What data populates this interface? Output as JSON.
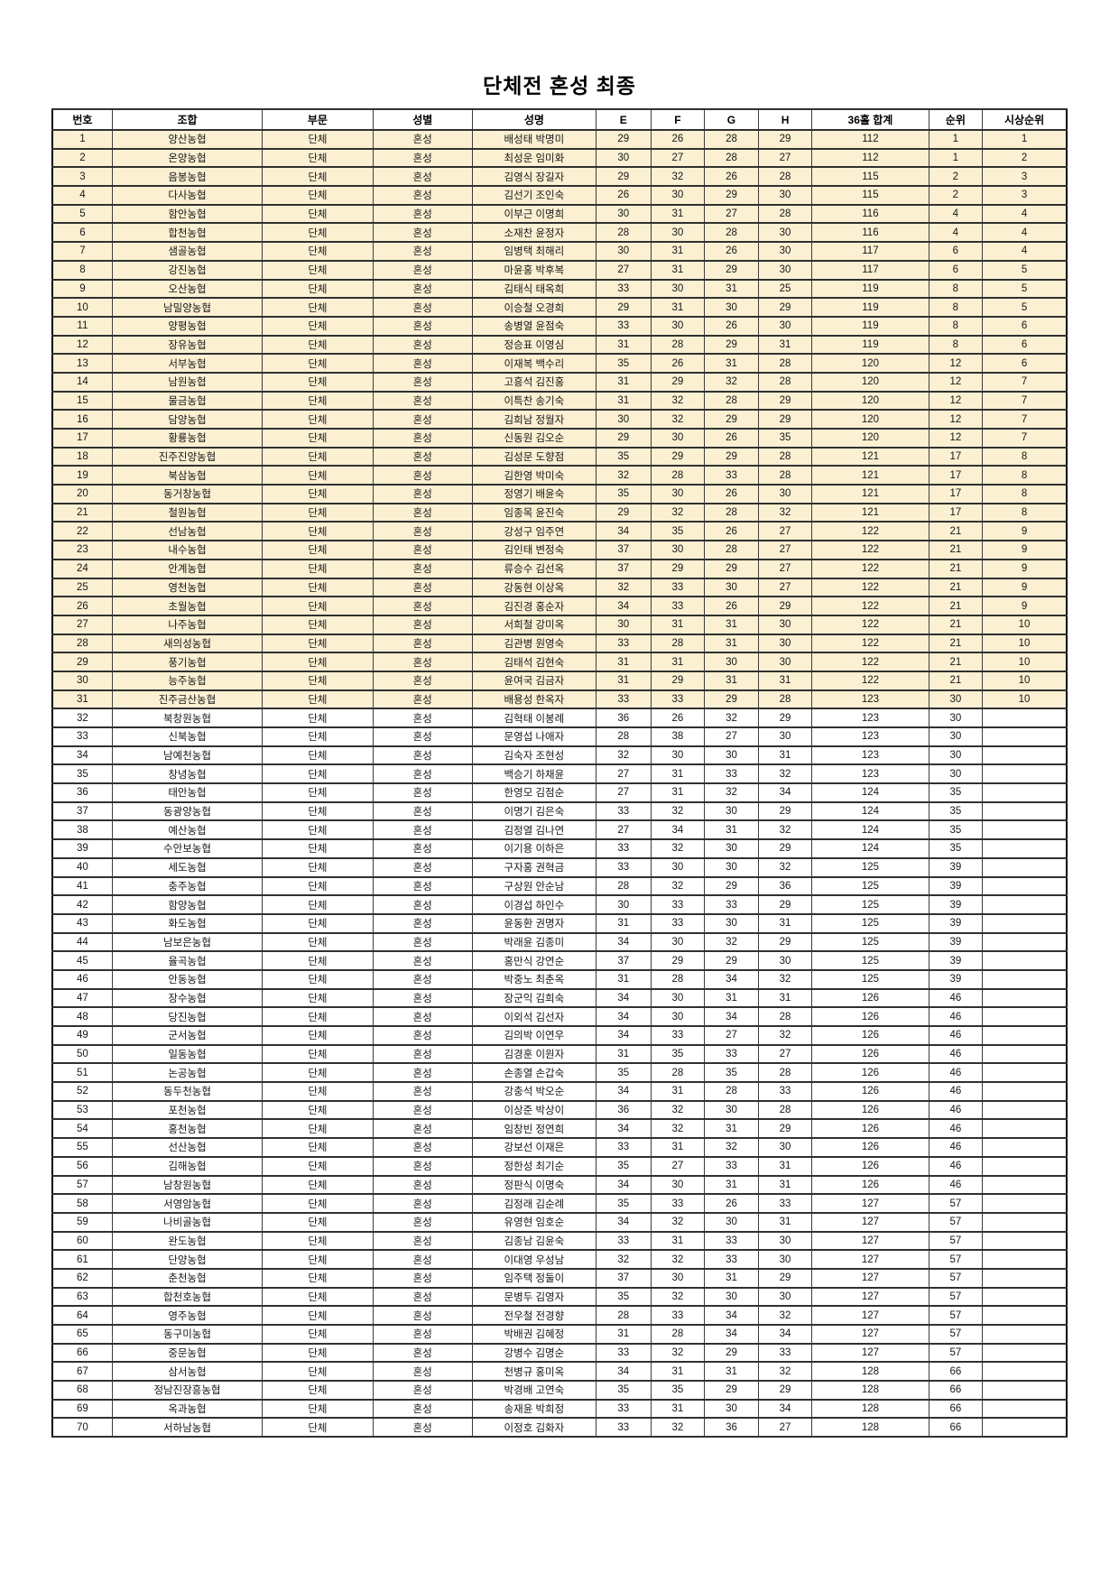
{
  "page": {
    "title": "단체전 혼성 최종"
  },
  "table": {
    "columns": [
      "번호",
      "조합",
      "부문",
      "성별",
      "성명",
      "E",
      "F",
      "G",
      "H",
      "36홀 합계",
      "순위",
      "시상순위"
    ],
    "highlight_color": "#fbf0d2",
    "highlight_through_row": 31,
    "rows": [
      [
        "1",
        "양산농협",
        "단체",
        "혼성",
        "배성태 박명미",
        "29",
        "26",
        "28",
        "29",
        "112",
        "1",
        "1"
      ],
      [
        "2",
        "온양농협",
        "단체",
        "혼성",
        "최성운 임미화",
        "30",
        "27",
        "28",
        "27",
        "112",
        "1",
        "2"
      ],
      [
        "3",
        "음봉농협",
        "단체",
        "혼성",
        "김영식 장길자",
        "29",
        "32",
        "26",
        "28",
        "115",
        "2",
        "3"
      ],
      [
        "4",
        "다사농협",
        "단체",
        "혼성",
        "김선기 조인숙",
        "26",
        "30",
        "29",
        "30",
        "115",
        "2",
        "3"
      ],
      [
        "5",
        "함안농협",
        "단체",
        "혼성",
        "이부근 이명희",
        "30",
        "31",
        "27",
        "28",
        "116",
        "4",
        "4"
      ],
      [
        "6",
        "합천농협",
        "단체",
        "혼성",
        "소재찬 윤정자",
        "28",
        "30",
        "28",
        "30",
        "116",
        "4",
        "4"
      ],
      [
        "7",
        "샘골농협",
        "단체",
        "혼성",
        "임병택 최해리",
        "30",
        "31",
        "26",
        "30",
        "117",
        "6",
        "4"
      ],
      [
        "8",
        "강진농협",
        "단체",
        "혼성",
        "마윤홍 박후복",
        "27",
        "31",
        "29",
        "30",
        "117",
        "6",
        "5"
      ],
      [
        "9",
        "오산농협",
        "단체",
        "혼성",
        "김태식 태옥희",
        "33",
        "30",
        "31",
        "25",
        "119",
        "8",
        "5"
      ],
      [
        "10",
        "남밀양농협",
        "단체",
        "혼성",
        "이승철 오경희",
        "29",
        "31",
        "30",
        "29",
        "119",
        "8",
        "5"
      ],
      [
        "11",
        "양평농협",
        "단체",
        "혼성",
        "송병열 윤점숙",
        "33",
        "30",
        "26",
        "30",
        "119",
        "8",
        "6"
      ],
      [
        "12",
        "장유농협",
        "단체",
        "혼성",
        "정승표 이영심",
        "31",
        "28",
        "29",
        "31",
        "119",
        "8",
        "6"
      ],
      [
        "13",
        "서부농협",
        "단체",
        "혼성",
        "이재복 백수리",
        "35",
        "26",
        "31",
        "28",
        "120",
        "12",
        "6"
      ],
      [
        "14",
        "남원농협",
        "단체",
        "혼성",
        "고흥석 김진홍",
        "31",
        "29",
        "32",
        "28",
        "120",
        "12",
        "7"
      ],
      [
        "15",
        "물금농협",
        "단체",
        "혼성",
        "이특찬 송기숙",
        "31",
        "32",
        "28",
        "29",
        "120",
        "12",
        "7"
      ],
      [
        "16",
        "담양농협",
        "단체",
        "혼성",
        "김희남 정월자",
        "30",
        "32",
        "29",
        "29",
        "120",
        "12",
        "7"
      ],
      [
        "17",
        "황룡농협",
        "단체",
        "혼성",
        "신동원 김오순",
        "29",
        "30",
        "26",
        "35",
        "120",
        "12",
        "7"
      ],
      [
        "18",
        "진주진양농협",
        "단체",
        "혼성",
        "김성문 도향점",
        "35",
        "29",
        "29",
        "28",
        "121",
        "17",
        "8"
      ],
      [
        "19",
        "북삼농협",
        "단체",
        "혼성",
        "김한영 박미숙",
        "32",
        "28",
        "33",
        "28",
        "121",
        "17",
        "8"
      ],
      [
        "20",
        "동거창농협",
        "단체",
        "혼성",
        "정영기 배윤숙",
        "35",
        "30",
        "26",
        "30",
        "121",
        "17",
        "8"
      ],
      [
        "21",
        "철원농협",
        "단체",
        "혼성",
        "임종목 윤진숙",
        "29",
        "32",
        "28",
        "32",
        "121",
        "17",
        "8"
      ],
      [
        "22",
        "선남농협",
        "단체",
        "혼성",
        "강성구 임주연",
        "34",
        "35",
        "26",
        "27",
        "122",
        "21",
        "9"
      ],
      [
        "23",
        "내수농협",
        "단체",
        "혼성",
        "김인태 변정숙",
        "37",
        "30",
        "28",
        "27",
        "122",
        "21",
        "9"
      ],
      [
        "24",
        "안계농협",
        "단체",
        "혼성",
        "류승수 김선옥",
        "37",
        "29",
        "29",
        "27",
        "122",
        "21",
        "9"
      ],
      [
        "25",
        "영천농협",
        "단체",
        "혼성",
        "강동현 이상옥",
        "32",
        "33",
        "30",
        "27",
        "122",
        "21",
        "9"
      ],
      [
        "26",
        "초월농협",
        "단체",
        "혼성",
        "김진경 홍순자",
        "34",
        "33",
        "26",
        "29",
        "122",
        "21",
        "9"
      ],
      [
        "27",
        "나주농협",
        "단체",
        "혼성",
        "서희철 강미옥",
        "30",
        "31",
        "31",
        "30",
        "122",
        "21",
        "10"
      ],
      [
        "28",
        "새의성농협",
        "단체",
        "혼성",
        "김관병 원영숙",
        "33",
        "28",
        "31",
        "30",
        "122",
        "21",
        "10"
      ],
      [
        "29",
        "풍기농협",
        "단체",
        "혼성",
        "김태석 김현숙",
        "31",
        "31",
        "30",
        "30",
        "122",
        "21",
        "10"
      ],
      [
        "30",
        "능주농협",
        "단체",
        "혼성",
        "윤여국 김금자",
        "31",
        "29",
        "31",
        "31",
        "122",
        "21",
        "10"
      ],
      [
        "31",
        "진주금산농협",
        "단체",
        "혼성",
        "배용성 한옥자",
        "33",
        "33",
        "29",
        "28",
        "123",
        "30",
        "10"
      ],
      [
        "32",
        "북창원농협",
        "단체",
        "혼성",
        "김혁태 이봉례",
        "36",
        "26",
        "32",
        "29",
        "123",
        "30",
        ""
      ],
      [
        "33",
        "신북농협",
        "단체",
        "혼성",
        "문영섭 나애자",
        "28",
        "38",
        "27",
        "30",
        "123",
        "30",
        ""
      ],
      [
        "34",
        "남예천농협",
        "단체",
        "혼성",
        "김숙자 조현성",
        "32",
        "30",
        "30",
        "31",
        "123",
        "30",
        ""
      ],
      [
        "35",
        "창녕농협",
        "단체",
        "혼성",
        "백승기 하채윤",
        "27",
        "31",
        "33",
        "32",
        "123",
        "30",
        ""
      ],
      [
        "36",
        "태안농협",
        "단체",
        "혼성",
        "한영모 김점순",
        "27",
        "31",
        "32",
        "34",
        "124",
        "35",
        ""
      ],
      [
        "37",
        "동광양농협",
        "단체",
        "혼성",
        "이명기 김은숙",
        "33",
        "32",
        "30",
        "29",
        "124",
        "35",
        ""
      ],
      [
        "38",
        "예산농협",
        "단체",
        "혼성",
        "김정열 김나연",
        "27",
        "34",
        "31",
        "32",
        "124",
        "35",
        ""
      ],
      [
        "39",
        "수안보농협",
        "단체",
        "혼성",
        "이기용 이하은",
        "33",
        "32",
        "30",
        "29",
        "124",
        "35",
        ""
      ],
      [
        "40",
        "세도농협",
        "단체",
        "혼성",
        "구자홍 권혁금",
        "33",
        "30",
        "30",
        "32",
        "125",
        "39",
        ""
      ],
      [
        "41",
        "충주농협",
        "단체",
        "혼성",
        "구상원 안순남",
        "28",
        "32",
        "29",
        "36",
        "125",
        "39",
        ""
      ],
      [
        "42",
        "함양농협",
        "단체",
        "혼성",
        "이경섭 하인수",
        "30",
        "33",
        "33",
        "29",
        "125",
        "39",
        ""
      ],
      [
        "43",
        "화도농협",
        "단체",
        "혼성",
        "윤동환 권명자",
        "31",
        "33",
        "30",
        "31",
        "125",
        "39",
        ""
      ],
      [
        "44",
        "남보은농협",
        "단체",
        "혼성",
        "박래윤 김종미",
        "34",
        "30",
        "32",
        "29",
        "125",
        "39",
        ""
      ],
      [
        "45",
        "율곡농협",
        "단체",
        "혼성",
        "홍만식 강연순",
        "37",
        "29",
        "29",
        "30",
        "125",
        "39",
        ""
      ],
      [
        "46",
        "안동농협",
        "단체",
        "혼성",
        "박중노 최춘옥",
        "31",
        "28",
        "34",
        "32",
        "125",
        "39",
        ""
      ],
      [
        "47",
        "장수농협",
        "단체",
        "혼성",
        "장군익 김희숙",
        "34",
        "30",
        "31",
        "31",
        "126",
        "46",
        ""
      ],
      [
        "48",
        "당진농협",
        "단체",
        "혼성",
        "이외석 김선자",
        "34",
        "30",
        "34",
        "28",
        "126",
        "46",
        ""
      ],
      [
        "49",
        "군서농협",
        "단체",
        "혼성",
        "김의박 이연우",
        "34",
        "33",
        "27",
        "32",
        "126",
        "46",
        ""
      ],
      [
        "50",
        "일동농협",
        "단체",
        "혼성",
        "김경훈 이원자",
        "31",
        "35",
        "33",
        "27",
        "126",
        "46",
        ""
      ],
      [
        "51",
        "논공농협",
        "단체",
        "혼성",
        "손종열 손갑숙",
        "35",
        "28",
        "35",
        "28",
        "126",
        "46",
        ""
      ],
      [
        "52",
        "동두천농협",
        "단체",
        "혼성",
        "강충석 박오순",
        "34",
        "31",
        "28",
        "33",
        "126",
        "46",
        ""
      ],
      [
        "53",
        "포천농협",
        "단체",
        "혼성",
        "이상준 박상이",
        "36",
        "32",
        "30",
        "28",
        "126",
        "46",
        ""
      ],
      [
        "54",
        "홍천농협",
        "단체",
        "혼성",
        "임창빈 정연희",
        "34",
        "32",
        "31",
        "29",
        "126",
        "46",
        ""
      ],
      [
        "55",
        "선산농협",
        "단체",
        "혼성",
        "강보선 이재은",
        "33",
        "31",
        "32",
        "30",
        "126",
        "46",
        ""
      ],
      [
        "56",
        "김해농협",
        "단체",
        "혼성",
        "정한성 최기순",
        "35",
        "27",
        "33",
        "31",
        "126",
        "46",
        ""
      ],
      [
        "57",
        "남창원농협",
        "단체",
        "혼성",
        "정판식 이명숙",
        "34",
        "30",
        "31",
        "31",
        "126",
        "46",
        ""
      ],
      [
        "58",
        "서영암농협",
        "단체",
        "혼성",
        "김정래 김순례",
        "35",
        "33",
        "26",
        "33",
        "127",
        "57",
        ""
      ],
      [
        "59",
        "나비골농협",
        "단체",
        "혼성",
        "유영현 임호순",
        "34",
        "32",
        "30",
        "31",
        "127",
        "57",
        ""
      ],
      [
        "60",
        "완도농협",
        "단체",
        "혼성",
        "김종남 김윤숙",
        "33",
        "31",
        "33",
        "30",
        "127",
        "57",
        ""
      ],
      [
        "61",
        "단양농협",
        "단체",
        "혼성",
        "이대영 우성남",
        "32",
        "32",
        "33",
        "30",
        "127",
        "57",
        ""
      ],
      [
        "62",
        "춘천농협",
        "단체",
        "혼성",
        "임주택 정둘이",
        "37",
        "30",
        "31",
        "29",
        "127",
        "57",
        ""
      ],
      [
        "63",
        "합천호농협",
        "단체",
        "혼성",
        "문병두 김영자",
        "35",
        "32",
        "30",
        "30",
        "127",
        "57",
        ""
      ],
      [
        "64",
        "영주농협",
        "단체",
        "혼성",
        "전우철 전경향",
        "28",
        "33",
        "34",
        "32",
        "127",
        "57",
        ""
      ],
      [
        "65",
        "동구미농협",
        "단체",
        "혼성",
        "박배권 김혜정",
        "31",
        "28",
        "34",
        "34",
        "127",
        "57",
        ""
      ],
      [
        "66",
        "중문농협",
        "단체",
        "혼성",
        "강병수 김명순",
        "33",
        "32",
        "29",
        "33",
        "127",
        "57",
        ""
      ],
      [
        "67",
        "삼서농협",
        "단체",
        "혼성",
        "천병규 홍미옥",
        "34",
        "31",
        "31",
        "32",
        "128",
        "66",
        ""
      ],
      [
        "68",
        "정남진장흥농협",
        "단체",
        "혼성",
        "박경배 고연숙",
        "35",
        "35",
        "29",
        "29",
        "128",
        "66",
        ""
      ],
      [
        "69",
        "옥과농협",
        "단체",
        "혼성",
        "송재윤 박희정",
        "33",
        "31",
        "30",
        "34",
        "128",
        "66",
        ""
      ],
      [
        "70",
        "서하남농협",
        "단체",
        "혼성",
        "이정호 김화자",
        "33",
        "32",
        "36",
        "27",
        "128",
        "66",
        ""
      ]
    ]
  }
}
